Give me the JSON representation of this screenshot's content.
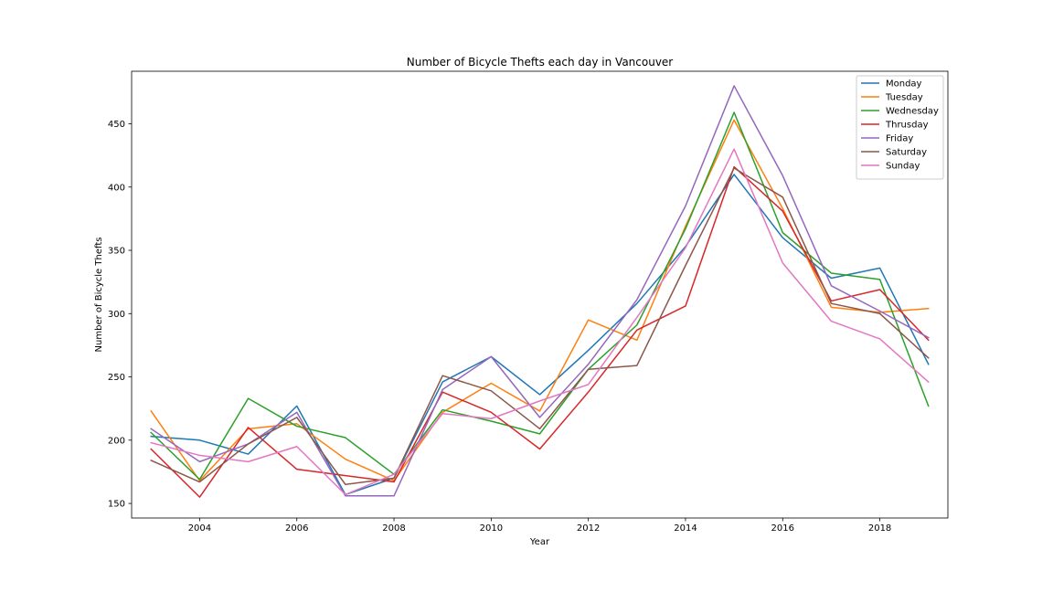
{
  "chart_data": {
    "type": "line",
    "title": "Number of Bicycle Thefts each day in Vancouver",
    "xlabel": "Year",
    "ylabel": "Number of Bicycle Thefts",
    "x": [
      2003,
      2004,
      2005,
      2006,
      2007,
      2008,
      2009,
      2010,
      2011,
      2012,
      2013,
      2014,
      2015,
      2016,
      2017,
      2018,
      2019
    ],
    "xlim": [
      2002.6,
      2019.4
    ],
    "ylim": [
      138.5,
      491.5
    ],
    "xticks": [
      2004,
      2006,
      2008,
      2010,
      2012,
      2014,
      2016,
      2018
    ],
    "yticks": [
      150,
      200,
      250,
      300,
      350,
      400,
      450
    ],
    "grid": false,
    "legend_position": "top-right",
    "series": [
      {
        "name": "Monday",
        "color": "#1f77b4",
        "values": [
          203,
          200,
          189,
          227,
          157,
          170,
          246,
          266,
          236,
          271,
          308,
          353,
          410,
          360,
          328,
          336,
          260
        ]
      },
      {
        "name": "Tuesday",
        "color": "#ff7f0e",
        "values": [
          223,
          168,
          209,
          213,
          185,
          168,
          222,
          245,
          223,
          295,
          279,
          369,
          453,
          383,
          305,
          301,
          304
        ]
      },
      {
        "name": "Wednesday",
        "color": "#2ca02c",
        "values": [
          206,
          169,
          233,
          211,
          202,
          173,
          224,
          215,
          205,
          256,
          291,
          367,
          459,
          364,
          332,
          327,
          227
        ]
      },
      {
        "name": "Thrusday",
        "color": "#d62728",
        "values": [
          193,
          155,
          210,
          177,
          172,
          167,
          238,
          222,
          193,
          238,
          287,
          306,
          416,
          381,
          310,
          319,
          279
        ]
      },
      {
        "name": "Friday",
        "color": "#9467bd",
        "values": [
          209,
          183,
          197,
          222,
          156,
          156,
          240,
          266,
          218,
          260,
          311,
          385,
          480,
          409,
          322,
          302,
          281
        ]
      },
      {
        "name": "Saturday",
        "color": "#8c564b",
        "values": [
          184,
          167,
          197,
          218,
          165,
          170,
          251,
          239,
          209,
          256,
          259,
          338,
          415,
          392,
          308,
          300,
          265
        ]
      },
      {
        "name": "Sunday",
        "color": "#e377c2",
        "values": [
          198,
          188,
          183,
          195,
          157,
          173,
          221,
          217,
          231,
          244,
          297,
          352,
          430,
          340,
          294,
          280,
          246
        ]
      }
    ]
  }
}
